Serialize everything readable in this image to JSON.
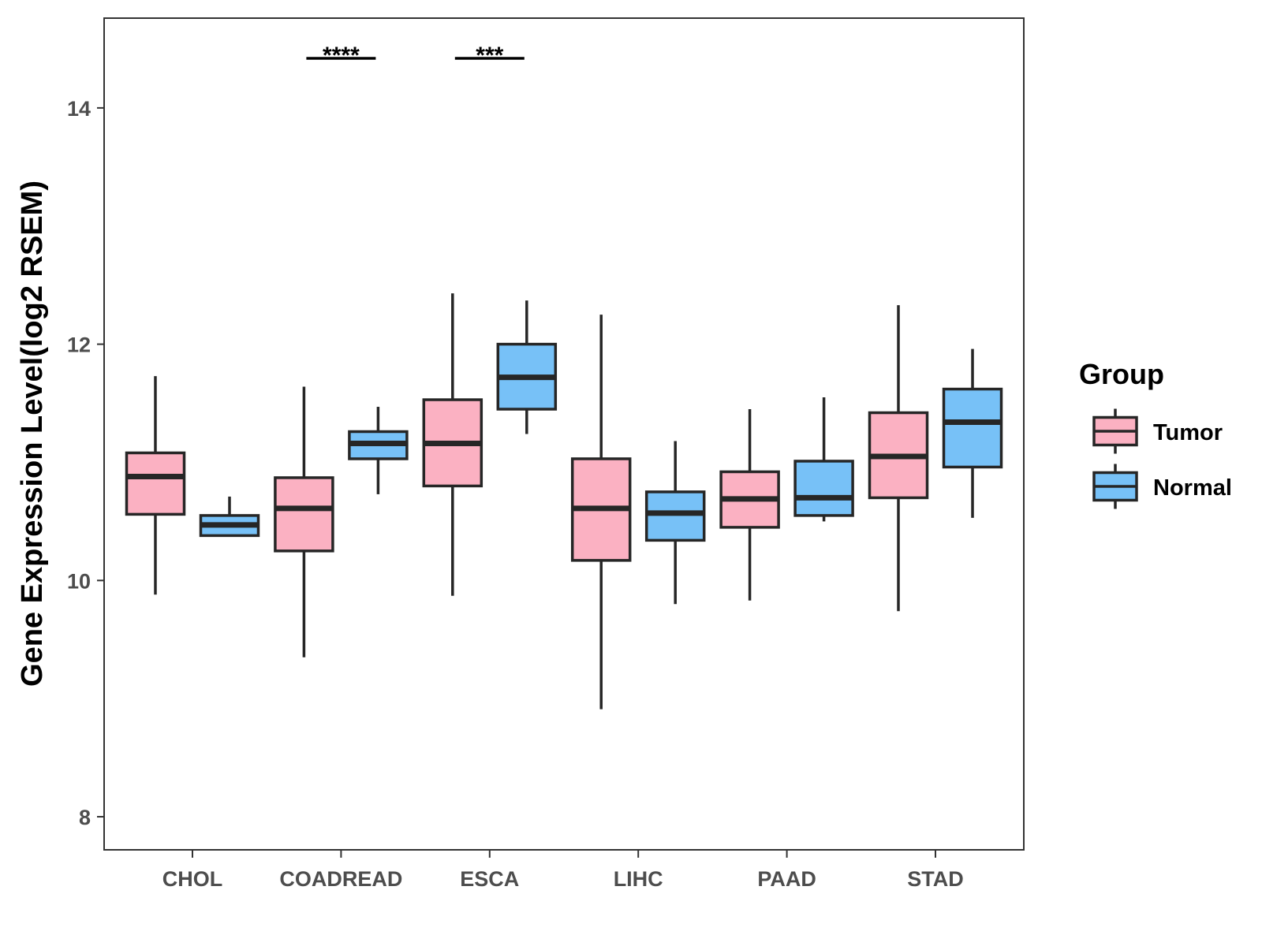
{
  "chart_data": {
    "type": "boxplot",
    "ylabel": "Gene Expression Level(log2 RSEM)",
    "xlabel": "",
    "ylim": [
      7.72,
      14.76
    ],
    "yticks": [
      8,
      10,
      12,
      14
    ],
    "categories": [
      "CHOL",
      "COADREAD",
      "ESCA",
      "LIHC",
      "PAAD",
      "STAD"
    ],
    "legend": {
      "title": "Group",
      "position": "right",
      "entries": [
        {
          "name": "Tumor",
          "color": "#FBB1C2"
        },
        {
          "name": "Normal",
          "color": "#77C1F7"
        }
      ]
    },
    "series": [
      {
        "name": "Tumor",
        "color": "#FBB1C2",
        "boxes": [
          {
            "category": "CHOL",
            "whisker_low": 9.88,
            "q1": 10.56,
            "median": 10.88,
            "q3": 11.08,
            "whisker_high": 11.73
          },
          {
            "category": "COADREAD",
            "whisker_low": 9.35,
            "q1": 10.25,
            "median": 10.61,
            "q3": 10.87,
            "whisker_high": 11.64
          },
          {
            "category": "ESCA",
            "whisker_low": 9.87,
            "q1": 10.8,
            "median": 11.16,
            "q3": 11.53,
            "whisker_high": 12.43
          },
          {
            "category": "LIHC",
            "whisker_low": 8.91,
            "q1": 10.17,
            "median": 10.61,
            "q3": 11.03,
            "whisker_high": 12.25
          },
          {
            "category": "PAAD",
            "whisker_low": 9.83,
            "q1": 10.45,
            "median": 10.69,
            "q3": 10.92,
            "whisker_high": 11.45
          },
          {
            "category": "STAD",
            "whisker_low": 9.74,
            "q1": 10.7,
            "median": 11.05,
            "q3": 11.42,
            "whisker_high": 12.33
          }
        ]
      },
      {
        "name": "Normal",
        "color": "#77C1F7",
        "boxes": [
          {
            "category": "CHOL",
            "whisker_low": 10.38,
            "q1": 10.38,
            "median": 10.47,
            "q3": 10.55,
            "whisker_high": 10.71
          },
          {
            "category": "COADREAD",
            "whisker_low": 10.73,
            "q1": 11.03,
            "median": 11.16,
            "q3": 11.26,
            "whisker_high": 11.47
          },
          {
            "category": "ESCA",
            "whisker_low": 11.24,
            "q1": 11.45,
            "median": 11.72,
            "q3": 12.0,
            "whisker_high": 12.37
          },
          {
            "category": "LIHC",
            "whisker_low": 9.8,
            "q1": 10.34,
            "median": 10.57,
            "q3": 10.75,
            "whisker_high": 11.18
          },
          {
            "category": "PAAD",
            "whisker_low": 10.5,
            "q1": 10.55,
            "median": 10.7,
            "q3": 11.01,
            "whisker_high": 11.55
          },
          {
            "category": "STAD",
            "whisker_low": 10.53,
            "q1": 10.96,
            "median": 11.34,
            "q3": 11.62,
            "whisker_high": 11.96
          }
        ]
      }
    ],
    "annotations": [
      {
        "category": "COADREAD",
        "label": "****",
        "y": 14.42
      },
      {
        "category": "ESCA",
        "label": "***",
        "y": 14.42
      }
    ]
  }
}
